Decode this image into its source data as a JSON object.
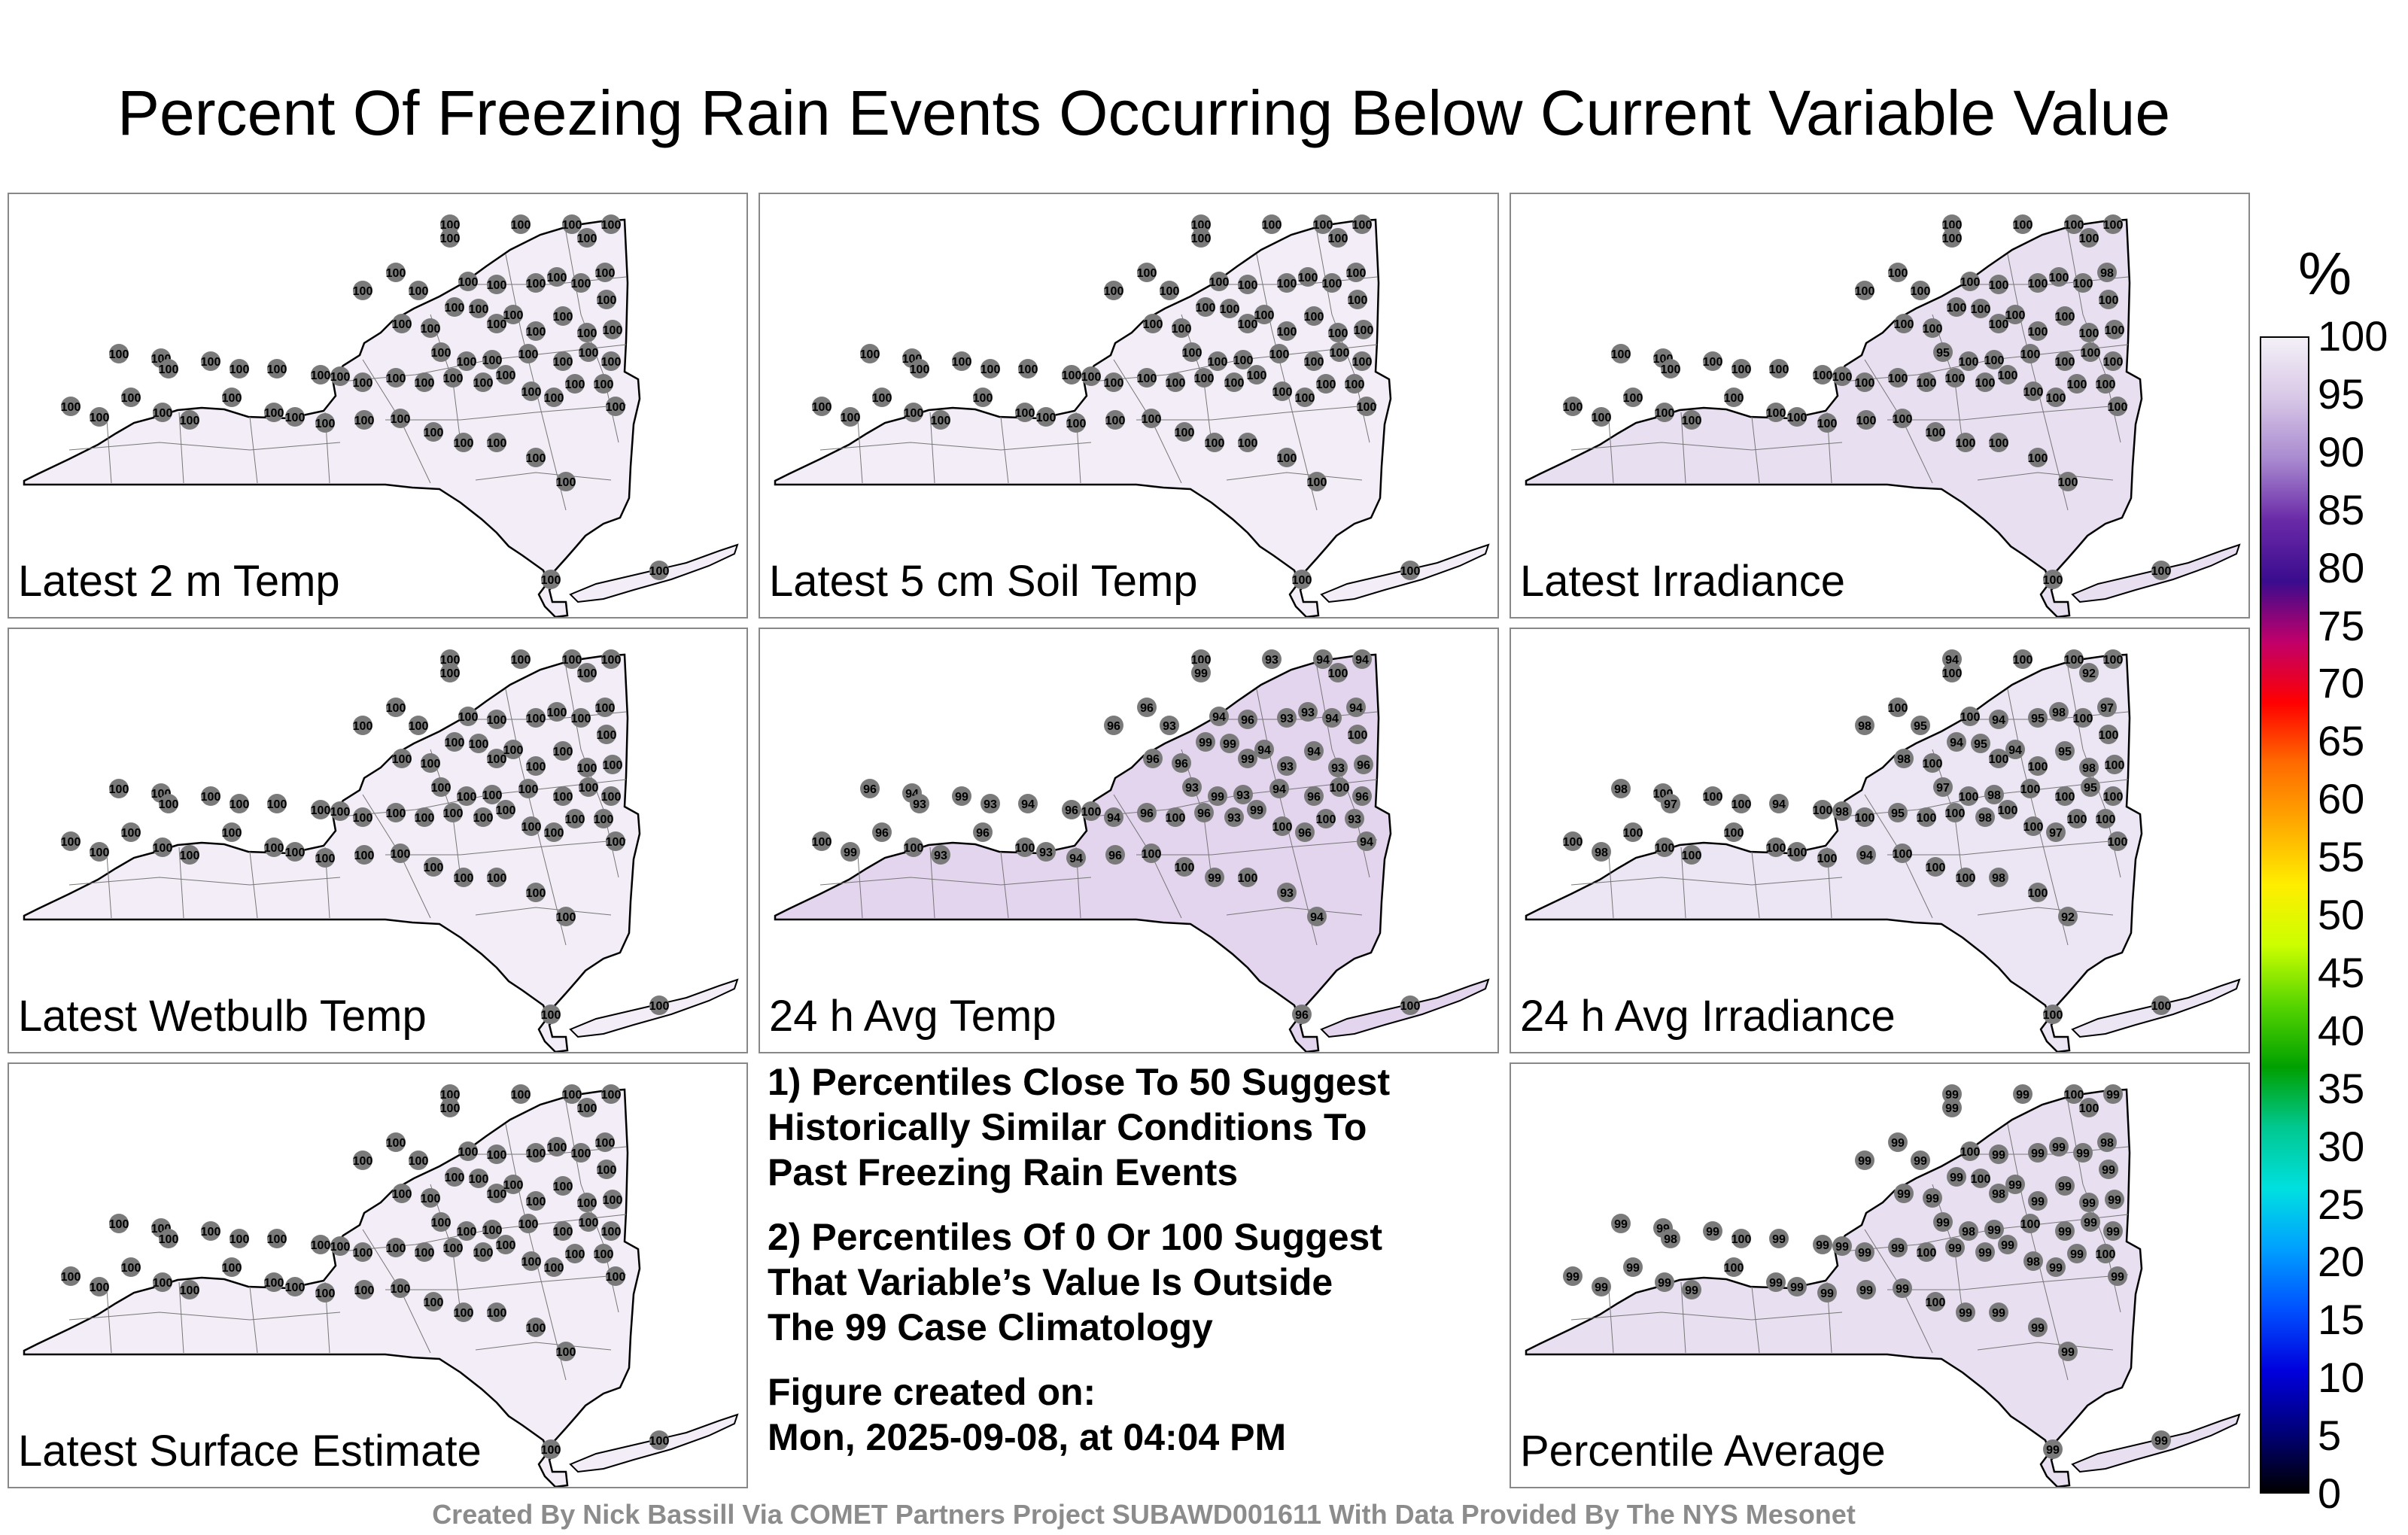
{
  "title": "Percent Of Freezing Rain Events Occurring Below Current Variable Value",
  "panels": [
    {
      "label": "Latest 2 m Temp",
      "fill": "#f2edf6",
      "stations": [
        "100",
        "100",
        "100",
        "100",
        "100",
        "100",
        "100",
        "100",
        "100",
        "100",
        "100",
        "100",
        "100",
        "100",
        "100",
        "100",
        "100",
        "100",
        "100",
        "100",
        "100",
        "100",
        "100",
        "100",
        "100",
        "100",
        "100",
        "100",
        "100",
        "100",
        "100",
        "100",
        "100",
        "100",
        "100",
        "100",
        "100",
        "100",
        "100",
        "100",
        "100",
        "100",
        "100",
        "100",
        "100",
        "100",
        "100",
        "100",
        "100",
        "100",
        "100",
        "100",
        "100",
        "100",
        "100",
        "100",
        "100",
        "100",
        "100",
        "100",
        "100",
        "100",
        "100",
        "100",
        "100",
        "100",
        "100",
        "100",
        "100",
        "100"
      ]
    },
    {
      "label": "Latest 5 cm Soil Temp",
      "fill": "#f2edf6",
      "stations": [
        "100",
        "100",
        "100",
        "100",
        "100",
        "100",
        "100",
        "100",
        "100",
        "100",
        "100",
        "100",
        "100",
        "100",
        "100",
        "100",
        "100",
        "100",
        "100",
        "100",
        "100",
        "100",
        "100",
        "100",
        "100",
        "100",
        "100",
        "100",
        "100",
        "100",
        "100",
        "100",
        "100",
        "100",
        "100",
        "100",
        "100",
        "100",
        "100",
        "100",
        "100",
        "100",
        "100",
        "100",
        "100",
        "100",
        "100",
        "100",
        "100",
        "100",
        "100",
        "100",
        "100",
        "100",
        "100",
        "100",
        "100",
        "100",
        "100",
        "100",
        "100",
        "100",
        "100",
        "100",
        "100",
        "100",
        "100",
        "100",
        "100",
        "100"
      ]
    },
    {
      "label": "Latest Irradiance",
      "fill": "#e8dff0",
      "stations": [
        "100",
        "100",
        "100",
        "100",
        "100",
        "100",
        "100",
        "100",
        "100",
        "100",
        "100",
        "100",
        "100",
        "100",
        "98",
        "100",
        "100",
        "100",
        "100",
        "100",
        "100",
        "100",
        "100",
        "100",
        "100",
        "100",
        "95",
        "100",
        "100",
        "100",
        "100",
        "100",
        "100",
        "100",
        "100",
        "100",
        "100",
        "100",
        "100",
        "100",
        "100",
        "100",
        "100",
        "100",
        "100",
        "100",
        "100",
        "100",
        "100",
        "100",
        "100",
        "100",
        "100",
        "100",
        "100",
        "100",
        "100",
        "100",
        "100",
        "100",
        "100",
        "100",
        "100",
        "100",
        "100",
        "100",
        "100",
        "100",
        "100",
        "100"
      ]
    },
    {
      "label": "Latest Wetbulb Temp",
      "fill": "#f2edf6",
      "stations": [
        "100",
        "100",
        "100",
        "100",
        "100",
        "100",
        "100",
        "100",
        "100",
        "100",
        "100",
        "100",
        "100",
        "100",
        "100",
        "100",
        "100",
        "100",
        "100",
        "100",
        "100",
        "100",
        "100",
        "100",
        "100",
        "100",
        "100",
        "100",
        "100",
        "100",
        "100",
        "100",
        "100",
        "100",
        "100",
        "100",
        "100",
        "100",
        "100",
        "100",
        "100",
        "100",
        "100",
        "100",
        "100",
        "100",
        "100",
        "100",
        "100",
        "100",
        "100",
        "100",
        "100",
        "100",
        "100",
        "100",
        "100",
        "100",
        "100",
        "100",
        "100",
        "100",
        "100",
        "100",
        "100",
        "100",
        "100",
        "100",
        "100",
        "100"
      ]
    },
    {
      "label": "24 h Avg Temp",
      "fill": "#e3d5ee",
      "stations": [
        "100",
        "99",
        "93",
        "94",
        "100",
        "94",
        "96",
        "96",
        "93",
        "94",
        "96",
        "93",
        "93",
        "94",
        "94",
        "100",
        "99",
        "99",
        "96",
        "96",
        "99",
        "94",
        "93",
        "94",
        "93",
        "96",
        "93",
        "99",
        "93",
        "94",
        "96",
        "100",
        "96",
        "96",
        "94",
        "93",
        "99",
        "93",
        "94",
        "96",
        "100",
        "94",
        "96",
        "100",
        "96",
        "93",
        "99",
        "100",
        "96",
        "100",
        "93",
        "94",
        "100",
        "99",
        "96",
        "100",
        "93",
        "96",
        "100",
        "93",
        "94",
        "96",
        "100",
        "100",
        "99",
        "100",
        "93",
        "94",
        "96",
        "100"
      ]
    },
    {
      "label": "24 h Avg Irradiance",
      "fill": "#ece5f3",
      "stations": [
        "94",
        "100",
        "100",
        "100",
        "92",
        "100",
        "98",
        "100",
        "95",
        "100",
        "94",
        "95",
        "98",
        "100",
        "97",
        "100",
        "94",
        "95",
        "100",
        "98",
        "100",
        "94",
        "100",
        "95",
        "98",
        "100",
        "97",
        "100",
        "98",
        "100",
        "100",
        "95",
        "100",
        "98",
        "100",
        "97",
        "100",
        "100",
        "94",
        "100",
        "98",
        "100",
        "95",
        "100",
        "100",
        "98",
        "100",
        "100",
        "97",
        "100",
        "100",
        "100",
        "100",
        "98",
        "100",
        "100",
        "100",
        "100",
        "100",
        "100",
        "100",
        "94",
        "100",
        "100",
        "100",
        "98",
        "100",
        "92",
        "100",
        "100"
      ]
    },
    {
      "label": "Latest Surface Estimate",
      "fill": "#f2edf6",
      "stations": [
        "100",
        "100",
        "100",
        "100",
        "100",
        "100",
        "100",
        "100",
        "100",
        "100",
        "100",
        "100",
        "100",
        "100",
        "100",
        "100",
        "100",
        "100",
        "100",
        "100",
        "100",
        "100",
        "100",
        "100",
        "100",
        "100",
        "100",
        "100",
        "100",
        "100",
        "100",
        "100",
        "100",
        "100",
        "100",
        "100",
        "100",
        "100",
        "100",
        "100",
        "100",
        "100",
        "100",
        "100",
        "100",
        "100",
        "100",
        "100",
        "100",
        "100",
        "100",
        "100",
        "100",
        "100",
        "100",
        "100",
        "100",
        "100",
        "100",
        "100",
        "100",
        "100",
        "100",
        "100",
        "100",
        "100",
        "100",
        "100",
        "100",
        "100"
      ]
    },
    {
      "label": "Percentile Average",
      "fill": "#e8dff0",
      "stations": [
        "99",
        "99",
        "99",
        "100",
        "100",
        "99",
        "99",
        "99",
        "99",
        "100",
        "99",
        "99",
        "99",
        "99",
        "98",
        "99",
        "99",
        "100",
        "99",
        "99",
        "98",
        "99",
        "99",
        "99",
        "99",
        "99",
        "99",
        "98",
        "99",
        "100",
        "99",
        "99",
        "99",
        "99",
        "99",
        "98",
        "99",
        "100",
        "99",
        "99",
        "99",
        "99",
        "99",
        "100",
        "99",
        "99",
        "99",
        "98",
        "99",
        "99",
        "100",
        "99",
        "99",
        "99",
        "99",
        "99",
        "99",
        "100",
        "99",
        "99",
        "99",
        "99",
        "99",
        "100",
        "99",
        "99",
        "99",
        "99",
        "99",
        "99"
      ]
    }
  ],
  "notes": [
    [
      "1) Percentiles Close To 50 Suggest",
      "Historically Similar Conditions To",
      "Past Freezing Rain Events"
    ],
    [
      "2) Percentiles Of 0 Or 100 Suggest",
      "That Variable’s Value Is Outside",
      "The 99 Case Climatology"
    ],
    [
      "Figure created on:",
      "Mon, 2025-09-08, at 04:04 PM"
    ]
  ],
  "colorbar": {
    "unit": "%",
    "ticks": [
      "100",
      "95",
      "90",
      "85",
      "80",
      "75",
      "70",
      "65",
      "60",
      "55",
      "50",
      "45",
      "40",
      "35",
      "30",
      "25",
      "20",
      "15",
      "10",
      "5",
      "0"
    ],
    "stops": [
      "#f4f0f7",
      "#d7c6e6",
      "#a98ad0",
      "#6a2aa8",
      "#3a0c8e",
      "#c0006a",
      "#ff0000",
      "#ff6a00",
      "#ffaa00",
      "#ffee00",
      "#ccff00",
      "#55d400",
      "#00a000",
      "#00c890",
      "#00e0e0",
      "#00a0ff",
      "#0050ff",
      "#0000dd",
      "#00007a",
      "#000000"
    ]
  },
  "credit": "Created By Nick Bassill Via COMET Partners Project SUBAWD001611 With Data Provided By The NYS Mesonet"
}
